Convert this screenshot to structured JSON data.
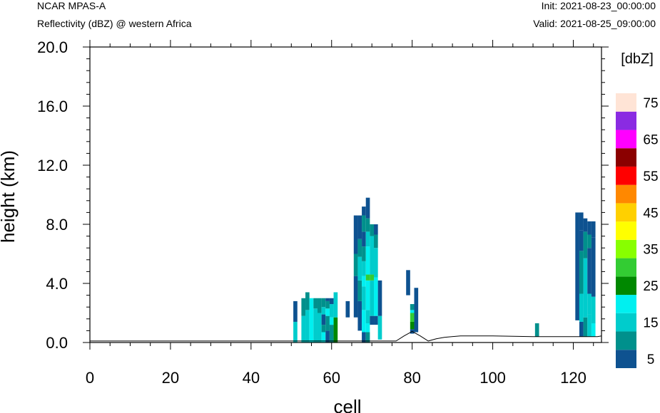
{
  "header": {
    "model": "NCAR MPAS-A",
    "field": "Reflectivity (dBZ) @ western Africa",
    "init": "Init: 2021-08-23_00:00:00",
    "valid": "Valid: 2021-08-25_09:00:00"
  },
  "chart_data": {
    "type": "heatmap",
    "xlabel": "cell",
    "ylabel": "height (km)",
    "xlim": [
      0,
      127
    ],
    "ylim": [
      0,
      20
    ],
    "x_ticks": [
      "0",
      "20",
      "40",
      "60",
      "80",
      "100",
      "120"
    ],
    "y_ticks": [
      "0.0",
      "4.0",
      "8.0",
      "12.0",
      "16.0",
      "20.0"
    ],
    "grid": false,
    "colorbar": {
      "unit": "[dbZ]",
      "placement": "right",
      "levels": [
        5,
        10,
        15,
        20,
        25,
        30,
        35,
        40,
        45,
        50,
        55,
        60,
        65,
        70,
        75
      ],
      "labels": [
        "5",
        "15",
        "25",
        "35",
        "45",
        "55",
        "65",
        "75"
      ],
      "colors": [
        "#0e5290",
        "#00908c",
        "#00cccc",
        "#00f0f0",
        "#008800",
        "#33cc33",
        "#88ff00",
        "#ffff00",
        "#ffd000",
        "#ff8800",
        "#ff0000",
        "#8b0000",
        "#ff00ff",
        "#8a2be2",
        "#ffe4d6"
      ]
    },
    "terrain": [
      [
        0,
        0.1
      ],
      [
        76,
        0.1
      ],
      [
        78,
        0.45
      ],
      [
        80,
        0.75
      ],
      [
        82,
        0.45
      ],
      [
        84,
        0.1
      ],
      [
        86,
        0.25
      ],
      [
        88,
        0.35
      ],
      [
        92,
        0.45
      ],
      [
        100,
        0.45
      ],
      [
        110,
        0.4
      ],
      [
        118,
        0.4
      ],
      [
        126,
        0.4
      ],
      [
        127,
        0.45
      ]
    ],
    "columns": [
      {
        "x": 51,
        "cells": [
          [
            0.0,
            1.4,
            15
          ],
          [
            1.4,
            2.8,
            5
          ]
        ]
      },
      {
        "x": 53,
        "cells": [
          [
            0.0,
            1.8,
            15
          ],
          [
            1.8,
            3.0,
            10
          ]
        ]
      },
      {
        "x": 54,
        "cells": [
          [
            0.0,
            2.2,
            15
          ],
          [
            2.2,
            3.4,
            10
          ]
        ]
      },
      {
        "x": 55,
        "cells": [
          [
            0.0,
            3.0,
            20
          ]
        ]
      },
      {
        "x": 56,
        "cells": [
          [
            0.0,
            2.3,
            15
          ],
          [
            2.3,
            3.0,
            10
          ]
        ]
      },
      {
        "x": 57,
        "cells": [
          [
            0.0,
            2.0,
            15
          ],
          [
            2.0,
            3.0,
            10
          ]
        ]
      },
      {
        "x": 58,
        "cells": [
          [
            0.0,
            0.7,
            20
          ],
          [
            0.7,
            1.2,
            10
          ],
          [
            1.2,
            1.9,
            5
          ],
          [
            1.9,
            2.4,
            15
          ],
          [
            2.4,
            3.0,
            10
          ]
        ]
      },
      {
        "x": 59,
        "cells": [
          [
            0.0,
            0.8,
            5
          ],
          [
            0.8,
            1.8,
            10
          ],
          [
            1.8,
            2.3,
            20
          ],
          [
            2.3,
            2.8,
            10
          ],
          [
            2.8,
            3.0,
            5
          ]
        ]
      },
      {
        "x": 60,
        "cells": [
          [
            0.0,
            1.2,
            10
          ],
          [
            1.2,
            1.7,
            20
          ],
          [
            1.7,
            2.6,
            15
          ],
          [
            2.6,
            3.0,
            5
          ]
        ]
      },
      {
        "x": 61,
        "cells": [
          [
            0.0,
            1.7,
            25
          ],
          [
            1.7,
            3.4,
            15
          ]
        ]
      },
      {
        "x": 64,
        "cells": [
          [
            1.7,
            2.8,
            5
          ]
        ]
      },
      {
        "x": 66,
        "cells": [
          [
            1.7,
            4.5,
            5
          ],
          [
            4.5,
            6.0,
            10
          ],
          [
            6.0,
            8.0,
            5
          ],
          [
            8.0,
            8.6,
            5
          ]
        ]
      },
      {
        "x": 67,
        "cells": [
          [
            0.8,
            2.8,
            5
          ],
          [
            2.8,
            4.2,
            10
          ],
          [
            4.2,
            5.8,
            15
          ],
          [
            5.8,
            7.0,
            10
          ],
          [
            7.0,
            8.6,
            5
          ]
        ]
      },
      {
        "x": 68,
        "cells": [
          [
            0.0,
            0.7,
            5
          ],
          [
            0.7,
            2.2,
            20
          ],
          [
            2.2,
            3.8,
            15
          ],
          [
            3.8,
            4.5,
            20
          ],
          [
            4.5,
            5.5,
            15
          ],
          [
            5.5,
            6.5,
            10
          ],
          [
            6.5,
            7.5,
            5
          ],
          [
            7.5,
            8.6,
            10
          ],
          [
            8.6,
            9.2,
            5
          ]
        ]
      },
      {
        "x": 69,
        "cells": [
          [
            0.0,
            0.7,
            10
          ],
          [
            0.7,
            1.3,
            20
          ],
          [
            1.3,
            2.2,
            15
          ],
          [
            2.2,
            4.2,
            20
          ],
          [
            4.2,
            4.6,
            30
          ],
          [
            4.6,
            6.5,
            20
          ],
          [
            6.5,
            7.5,
            15
          ],
          [
            7.5,
            8.4,
            10
          ],
          [
            8.4,
            9.8,
            5
          ]
        ]
      },
      {
        "x": 70,
        "cells": [
          [
            1.2,
            1.8,
            5
          ],
          [
            1.8,
            4.2,
            15
          ],
          [
            4.2,
            4.6,
            30
          ],
          [
            4.6,
            7.2,
            15
          ],
          [
            7.2,
            8.0,
            10
          ]
        ]
      },
      {
        "x": 71,
        "cells": [
          [
            1.2,
            1.8,
            5
          ],
          [
            1.8,
            4.4,
            20
          ],
          [
            4.4,
            6.4,
            15
          ],
          [
            6.4,
            7.3,
            10
          ],
          [
            7.3,
            8.0,
            5
          ]
        ]
      },
      {
        "x": 72,
        "cells": [
          [
            0.2,
            1.8,
            15
          ],
          [
            1.8,
            4.2,
            5
          ]
        ]
      },
      {
        "x": 79,
        "cells": [
          [
            3.2,
            4.9,
            5
          ]
        ]
      },
      {
        "x": 80,
        "cells": [
          [
            0.6,
            0.9,
            5
          ],
          [
            0.9,
            1.4,
            25
          ],
          [
            1.4,
            2.0,
            30
          ],
          [
            2.0,
            2.2,
            20
          ],
          [
            2.2,
            2.6,
            10
          ]
        ]
      },
      {
        "x": 81,
        "cells": [
          [
            0.7,
            3.7,
            5
          ]
        ]
      },
      {
        "x": 111,
        "cells": [
          [
            0.4,
            1.3,
            10
          ]
        ]
      },
      {
        "x": 121,
        "cells": [
          [
            1.5,
            8.8,
            5
          ]
        ]
      },
      {
        "x": 122,
        "cells": [
          [
            0.4,
            1.4,
            5
          ],
          [
            1.4,
            3.3,
            15
          ],
          [
            3.3,
            6.2,
            10
          ],
          [
            6.2,
            7.6,
            5
          ],
          [
            7.6,
            8.8,
            5
          ]
        ]
      },
      {
        "x": 123,
        "cells": [
          [
            0.4,
            1.7,
            10
          ],
          [
            1.7,
            5.7,
            15
          ],
          [
            5.7,
            7.5,
            10
          ],
          [
            7.5,
            8.4,
            5
          ]
        ]
      },
      {
        "x": 124,
        "cells": [
          [
            0.4,
            1.9,
            15
          ],
          [
            1.9,
            3.3,
            15
          ],
          [
            3.3,
            6.4,
            5
          ],
          [
            6.4,
            7.3,
            10
          ],
          [
            7.3,
            8.2,
            5
          ]
        ]
      },
      {
        "x": 125,
        "cells": [
          [
            0.4,
            1.3,
            20
          ],
          [
            1.3,
            3.1,
            15
          ],
          [
            3.1,
            7.1,
            5
          ],
          [
            7.1,
            8.2,
            5
          ]
        ]
      }
    ]
  }
}
